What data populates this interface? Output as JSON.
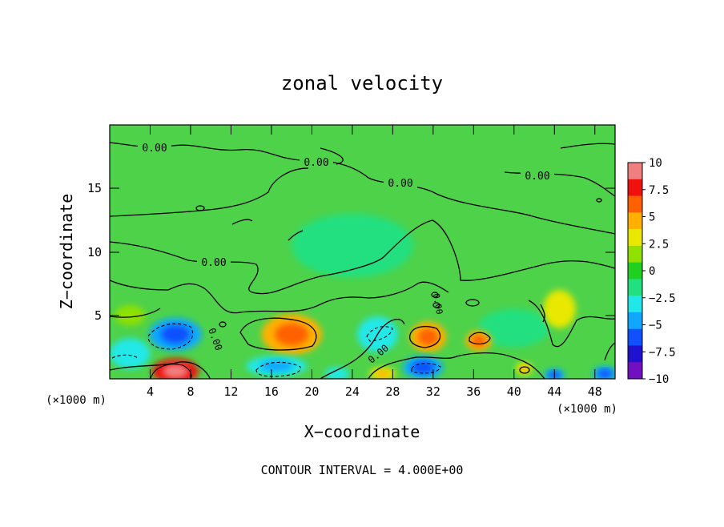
{
  "chart_data": {
    "type": "heatmap",
    "title": "zonal velocity",
    "xlabel": "X−coordinate",
    "ylabel": "Z−coordinate",
    "x_unit": "(×1000 m)",
    "y_unit": "(×1000 m)",
    "xlim": [
      0,
      50
    ],
    "ylim": [
      0,
      20
    ],
    "x_ticks": [
      "4",
      "8",
      "12",
      "16",
      "20",
      "24",
      "28",
      "32",
      "36",
      "40",
      "44",
      "48"
    ],
    "y_ticks": [
      "5",
      "10",
      "15"
    ],
    "colorbar": {
      "labels": [
        "10",
        "7.5",
        "5",
        "2.5",
        "0",
        "−2.5",
        "−5",
        "−7.5",
        "−10"
      ],
      "colors": [
        "#f08080",
        "#f01010",
        "#ff6000",
        "#ffb000",
        "#e8e800",
        "#90e000",
        "#20d020",
        "#20e080",
        "#20e8e8",
        "#10a8ff",
        "#1050ff",
        "#2010d0",
        "#7010c0"
      ]
    },
    "contour_label": "0.00",
    "footer": "CONTOUR INTERVAL = 4.000E+00",
    "blobs": [
      {
        "x": 6.5,
        "y": 0.6,
        "rx": 2.3,
        "ry": 1.0,
        "v": 9
      },
      {
        "x": 6.5,
        "y": 3.5,
        "rx": 2.6,
        "ry": 1.3,
        "v": -5
      },
      {
        "x": 18.0,
        "y": 3.5,
        "rx": 3.0,
        "ry": 1.6,
        "v": 5
      },
      {
        "x": 16.5,
        "y": 1.0,
        "rx": 3.0,
        "ry": 0.8,
        "v": -4
      },
      {
        "x": 26.5,
        "y": 3.5,
        "rx": 2.0,
        "ry": 1.4,
        "v": -3
      },
      {
        "x": 27.0,
        "y": 0.4,
        "rx": 1.3,
        "ry": 0.5,
        "v": 4
      },
      {
        "x": 31.0,
        "y": 0.9,
        "rx": 2.0,
        "ry": 0.9,
        "v": -5
      },
      {
        "x": 31.5,
        "y": 3.3,
        "rx": 1.8,
        "ry": 1.2,
        "v": 5
      },
      {
        "x": 36.5,
        "y": 3.0,
        "rx": 1.3,
        "ry": 0.8,
        "v": 4.5
      },
      {
        "x": 44.5,
        "y": 5.5,
        "rx": 1.6,
        "ry": 1.5,
        "v": 3
      },
      {
        "x": 41.0,
        "y": 0.8,
        "rx": 0.8,
        "ry": 0.5,
        "v": 4
      },
      {
        "x": 44.0,
        "y": 0.3,
        "rx": 1.0,
        "ry": 0.5,
        "v": -5
      },
      {
        "x": 49.0,
        "y": 0.4,
        "rx": 1.2,
        "ry": 0.6,
        "v": -5
      },
      {
        "x": 22.5,
        "y": 0.4,
        "rx": 1.2,
        "ry": 0.5,
        "v": -3
      },
      {
        "x": 2.0,
        "y": 2.0,
        "rx": 2.0,
        "ry": 1.2,
        "v": -2.5
      },
      {
        "x": 24.0,
        "y": 10.5,
        "rx": 6.0,
        "ry": 2.5,
        "v": -1.5
      },
      {
        "x": 40.0,
        "y": 4.0,
        "rx": 3.5,
        "ry": 1.5,
        "v": -2
      },
      {
        "x": 2.0,
        "y": 5.0,
        "rx": 1.5,
        "ry": 0.8,
        "v": 2.5
      }
    ]
  }
}
